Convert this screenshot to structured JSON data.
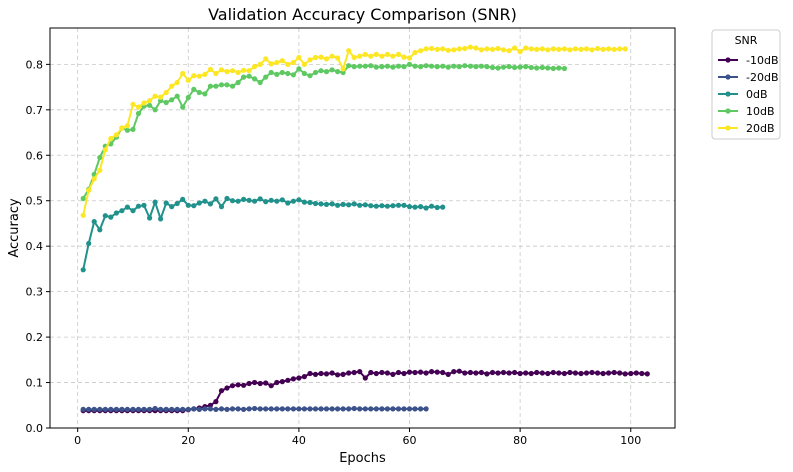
{
  "chart_data": {
    "type": "line",
    "title": "Validation Accuracy Comparison (SNR)",
    "xlabel": "Epochs",
    "ylabel": "Accuracy",
    "xlim": [
      -5,
      108
    ],
    "ylim": [
      0.0,
      0.88
    ],
    "xticks": [
      0,
      20,
      40,
      60,
      80,
      100
    ],
    "yticks": [
      0.0,
      0.1,
      0.2,
      0.3,
      0.4,
      0.5,
      0.6,
      0.7,
      0.8
    ],
    "ytick_labels": [
      "0.0",
      "0.1",
      "0.2",
      "0.3",
      "0.4",
      "0.5",
      "0.6",
      "0.7",
      "0.8"
    ],
    "grid": true,
    "legend": {
      "title": "SNR",
      "placement": "outside-top-right"
    },
    "series": [
      {
        "name": "-10dB",
        "color": "#440154",
        "x": [
          1,
          2,
          3,
          4,
          5,
          6,
          7,
          8,
          9,
          10,
          11,
          12,
          13,
          14,
          15,
          16,
          17,
          18,
          19,
          20,
          21,
          22,
          23,
          24,
          25,
          26,
          27,
          28,
          29,
          30,
          31,
          32,
          33,
          34,
          35,
          36,
          37,
          38,
          39,
          40,
          41,
          42,
          43,
          44,
          45,
          46,
          47,
          48,
          49,
          50,
          51,
          52,
          53,
          54,
          55,
          56,
          57,
          58,
          59,
          60,
          61,
          62,
          63,
          64,
          65,
          66,
          67,
          68,
          69,
          70,
          71,
          72,
          73,
          74,
          75,
          76,
          77,
          78,
          79,
          80,
          81,
          82,
          83,
          84,
          85,
          86,
          87,
          88,
          89,
          90,
          91,
          92,
          93,
          94,
          95,
          96,
          97,
          98,
          99,
          100,
          101,
          102,
          103
        ],
        "y": [
          0.038,
          0.038,
          0.038,
          0.038,
          0.038,
          0.038,
          0.038,
          0.038,
          0.038,
          0.038,
          0.038,
          0.038,
          0.038,
          0.038,
          0.038,
          0.038,
          0.038,
          0.038,
          0.038,
          0.04,
          0.042,
          0.044,
          0.047,
          0.05,
          0.058,
          0.082,
          0.088,
          0.093,
          0.095,
          0.094,
          0.098,
          0.1,
          0.098,
          0.099,
          0.093,
          0.1,
          0.102,
          0.105,
          0.108,
          0.11,
          0.113,
          0.12,
          0.118,
          0.12,
          0.119,
          0.121,
          0.117,
          0.118,
          0.121,
          0.122,
          0.124,
          0.11,
          0.122,
          0.12,
          0.122,
          0.121,
          0.118,
          0.122,
          0.12,
          0.123,
          0.122,
          0.123,
          0.121,
          0.124,
          0.123,
          0.122,
          0.118,
          0.124,
          0.125,
          0.121,
          0.122,
          0.121,
          0.122,
          0.119,
          0.122,
          0.121,
          0.122,
          0.121,
          0.122,
          0.12,
          0.121,
          0.12,
          0.122,
          0.121,
          0.12,
          0.122,
          0.121,
          0.12,
          0.122,
          0.121,
          0.12,
          0.121,
          0.122,
          0.121,
          0.12,
          0.121,
          0.122,
          0.121,
          0.119,
          0.12,
          0.121,
          0.12,
          0.119
        ]
      },
      {
        "name": "-20dB",
        "color": "#3b528b",
        "x": [
          1,
          2,
          3,
          4,
          5,
          6,
          7,
          8,
          9,
          10,
          11,
          12,
          13,
          14,
          15,
          16,
          17,
          18,
          19,
          20,
          21,
          22,
          23,
          24,
          25,
          26,
          27,
          28,
          29,
          30,
          31,
          32,
          33,
          34,
          35,
          36,
          37,
          38,
          39,
          40,
          41,
          42,
          43,
          44,
          45,
          46,
          47,
          48,
          49,
          50,
          51,
          52,
          53,
          54,
          55,
          56,
          57,
          58,
          59,
          60,
          61,
          62,
          63
        ],
        "y": [
          0.041,
          0.041,
          0.041,
          0.041,
          0.041,
          0.041,
          0.041,
          0.041,
          0.041,
          0.041,
          0.041,
          0.041,
          0.041,
          0.043,
          0.041,
          0.041,
          0.041,
          0.041,
          0.041,
          0.041,
          0.042,
          0.041,
          0.042,
          0.042,
          0.041,
          0.042,
          0.041,
          0.042,
          0.042,
          0.041,
          0.042,
          0.043,
          0.042,
          0.042,
          0.042,
          0.042,
          0.042,
          0.042,
          0.042,
          0.042,
          0.042,
          0.042,
          0.042,
          0.042,
          0.042,
          0.042,
          0.042,
          0.042,
          0.042,
          0.043,
          0.042,
          0.042,
          0.042,
          0.042,
          0.042,
          0.042,
          0.042,
          0.042,
          0.042,
          0.042,
          0.042,
          0.042,
          0.042
        ]
      },
      {
        "name": "0dB",
        "color": "#21918c",
        "x": [
          1,
          2,
          3,
          4,
          5,
          6,
          7,
          8,
          9,
          10,
          11,
          12,
          13,
          14,
          15,
          16,
          17,
          18,
          19,
          20,
          21,
          22,
          23,
          24,
          25,
          26,
          27,
          28,
          29,
          30,
          31,
          32,
          33,
          34,
          35,
          36,
          37,
          38,
          39,
          40,
          41,
          42,
          43,
          44,
          45,
          46,
          47,
          48,
          49,
          50,
          51,
          52,
          53,
          54,
          55,
          56,
          57,
          58,
          59,
          60,
          61,
          62,
          63,
          64,
          65,
          66
        ],
        "y": [
          0.348,
          0.406,
          0.454,
          0.436,
          0.467,
          0.464,
          0.473,
          0.478,
          0.486,
          0.478,
          0.488,
          0.49,
          0.462,
          0.497,
          0.46,
          0.495,
          0.487,
          0.494,
          0.503,
          0.49,
          0.489,
          0.495,
          0.499,
          0.493,
          0.504,
          0.487,
          0.505,
          0.5,
          0.499,
          0.503,
          0.501,
          0.499,
          0.504,
          0.498,
          0.501,
          0.499,
          0.502,
          0.495,
          0.499,
          0.502,
          0.497,
          0.496,
          0.494,
          0.493,
          0.492,
          0.493,
          0.49,
          0.492,
          0.491,
          0.493,
          0.49,
          0.491,
          0.489,
          0.488,
          0.489,
          0.488,
          0.489,
          0.49,
          0.49,
          0.487,
          0.486,
          0.487,
          0.484,
          0.488,
          0.485,
          0.486
        ]
      },
      {
        "name": "10dB",
        "color": "#5ec962",
        "x": [
          1,
          2,
          3,
          4,
          5,
          6,
          7,
          8,
          9,
          10,
          11,
          12,
          13,
          14,
          15,
          16,
          17,
          18,
          19,
          20,
          21,
          22,
          23,
          24,
          25,
          26,
          27,
          28,
          29,
          30,
          31,
          32,
          33,
          34,
          35,
          36,
          37,
          38,
          39,
          40,
          41,
          42,
          43,
          44,
          45,
          46,
          47,
          48,
          49,
          50,
          51,
          52,
          53,
          54,
          55,
          56,
          57,
          58,
          59,
          60,
          61,
          62,
          63,
          64,
          65,
          66,
          67,
          68,
          69,
          70,
          71,
          72,
          73,
          74,
          75,
          76,
          77,
          78,
          79,
          80,
          81,
          82,
          83,
          84,
          85,
          86,
          87,
          88
        ],
        "y": [
          0.505,
          0.525,
          0.558,
          0.595,
          0.62,
          0.625,
          0.64,
          0.66,
          0.655,
          0.657,
          0.692,
          0.708,
          0.71,
          0.7,
          0.72,
          0.716,
          0.722,
          0.73,
          0.706,
          0.727,
          0.745,
          0.738,
          0.735,
          0.752,
          0.752,
          0.755,
          0.755,
          0.752,
          0.76,
          0.772,
          0.774,
          0.768,
          0.76,
          0.772,
          0.782,
          0.778,
          0.782,
          0.78,
          0.777,
          0.79,
          0.78,
          0.775,
          0.782,
          0.786,
          0.784,
          0.788,
          0.784,
          0.782,
          0.797,
          0.795,
          0.796,
          0.796,
          0.797,
          0.794,
          0.795,
          0.796,
          0.794,
          0.796,
          0.795,
          0.8,
          0.796,
          0.795,
          0.797,
          0.796,
          0.795,
          0.796,
          0.794,
          0.796,
          0.795,
          0.797,
          0.796,
          0.795,
          0.796,
          0.795,
          0.793,
          0.792,
          0.794,
          0.795,
          0.793,
          0.794,
          0.795,
          0.793,
          0.792,
          0.793,
          0.792,
          0.791,
          0.792,
          0.791
        ]
      },
      {
        "name": "20dB",
        "color": "#fde725",
        "x": [
          1,
          2,
          3,
          4,
          5,
          6,
          7,
          8,
          9,
          10,
          11,
          12,
          13,
          14,
          15,
          16,
          17,
          18,
          19,
          20,
          21,
          22,
          23,
          24,
          25,
          26,
          27,
          28,
          29,
          30,
          31,
          32,
          33,
          34,
          35,
          36,
          37,
          38,
          39,
          40,
          41,
          42,
          43,
          44,
          45,
          46,
          47,
          48,
          49,
          50,
          51,
          52,
          53,
          54,
          55,
          56,
          57,
          58,
          59,
          60,
          61,
          62,
          63,
          64,
          65,
          66,
          67,
          68,
          69,
          70,
          71,
          72,
          73,
          74,
          75,
          76,
          77,
          78,
          79,
          80,
          81,
          82,
          83,
          84,
          85,
          86,
          87,
          88,
          89,
          90,
          91,
          92,
          93,
          94,
          95,
          96,
          97,
          98,
          99
        ],
        "y": [
          0.468,
          0.523,
          0.548,
          0.567,
          0.612,
          0.637,
          0.645,
          0.66,
          0.665,
          0.712,
          0.706,
          0.715,
          0.72,
          0.73,
          0.728,
          0.738,
          0.752,
          0.76,
          0.78,
          0.765,
          0.775,
          0.774,
          0.778,
          0.789,
          0.78,
          0.788,
          0.784,
          0.786,
          0.782,
          0.787,
          0.786,
          0.795,
          0.8,
          0.812,
          0.801,
          0.804,
          0.808,
          0.8,
          0.804,
          0.815,
          0.8,
          0.81,
          0.815,
          0.816,
          0.812,
          0.818,
          0.814,
          0.79,
          0.83,
          0.815,
          0.818,
          0.822,
          0.818,
          0.822,
          0.818,
          0.822,
          0.818,
          0.822,
          0.816,
          0.814,
          0.826,
          0.83,
          0.834,
          0.835,
          0.833,
          0.834,
          0.831,
          0.832,
          0.834,
          0.835,
          0.838,
          0.836,
          0.832,
          0.834,
          0.833,
          0.835,
          0.832,
          0.83,
          0.836,
          0.828,
          0.836,
          0.834,
          0.833,
          0.834,
          0.832,
          0.834,
          0.833,
          0.834,
          0.832,
          0.834,
          0.833,
          0.834,
          0.832,
          0.835,
          0.833,
          0.834,
          0.833,
          0.834,
          0.834
        ]
      }
    ]
  }
}
